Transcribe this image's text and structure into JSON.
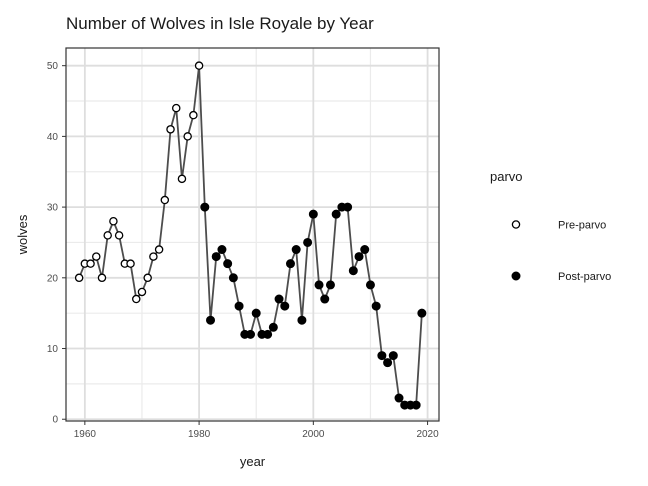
{
  "chart_data": {
    "type": "line",
    "title": "Number of Wolves in Isle Royale by Year",
    "xlabel": "year",
    "ylabel": "wolves",
    "xlim": [
      1956.7,
      2022.0
    ],
    "ylim": [
      -0.25,
      52.5
    ],
    "x_ticks": [
      1960,
      1980,
      2000,
      2020
    ],
    "y_ticks": [
      0,
      10,
      20,
      30,
      40,
      50
    ],
    "grid": true,
    "legend_title": "parvo",
    "legend_position": "right",
    "line_color": "#4d4d4d",
    "point_color": "#000000",
    "groups": [
      {
        "name": "Pre-parvo",
        "marker": "open-circle"
      },
      {
        "name": "Post-parvo",
        "marker": "filled-circle"
      }
    ],
    "points": [
      {
        "x": 1959,
        "y": 20,
        "group": "Pre-parvo"
      },
      {
        "x": 1960,
        "y": 22,
        "group": "Pre-parvo"
      },
      {
        "x": 1961,
        "y": 22,
        "group": "Pre-parvo"
      },
      {
        "x": 1962,
        "y": 23,
        "group": "Pre-parvo"
      },
      {
        "x": 1963,
        "y": 20,
        "group": "Pre-parvo"
      },
      {
        "x": 1964,
        "y": 26,
        "group": "Pre-parvo"
      },
      {
        "x": 1965,
        "y": 28,
        "group": "Pre-parvo"
      },
      {
        "x": 1966,
        "y": 26,
        "group": "Pre-parvo"
      },
      {
        "x": 1967,
        "y": 22,
        "group": "Pre-parvo"
      },
      {
        "x": 1968,
        "y": 22,
        "group": "Pre-parvo"
      },
      {
        "x": 1969,
        "y": 17,
        "group": "Pre-parvo"
      },
      {
        "x": 1970,
        "y": 18,
        "group": "Pre-parvo"
      },
      {
        "x": 1971,
        "y": 20,
        "group": "Pre-parvo"
      },
      {
        "x": 1972,
        "y": 23,
        "group": "Pre-parvo"
      },
      {
        "x": 1973,
        "y": 24,
        "group": "Pre-parvo"
      },
      {
        "x": 1974,
        "y": 31,
        "group": "Pre-parvo"
      },
      {
        "x": 1975,
        "y": 41,
        "group": "Pre-parvo"
      },
      {
        "x": 1976,
        "y": 44,
        "group": "Pre-parvo"
      },
      {
        "x": 1977,
        "y": 34,
        "group": "Pre-parvo"
      },
      {
        "x": 1978,
        "y": 40,
        "group": "Pre-parvo"
      },
      {
        "x": 1979,
        "y": 43,
        "group": "Pre-parvo"
      },
      {
        "x": 1980,
        "y": 50,
        "group": "Pre-parvo"
      },
      {
        "x": 1981,
        "y": 30,
        "group": "Post-parvo"
      },
      {
        "x": 1982,
        "y": 14,
        "group": "Post-parvo"
      },
      {
        "x": 1983,
        "y": 23,
        "group": "Post-parvo"
      },
      {
        "x": 1984,
        "y": 24,
        "group": "Post-parvo"
      },
      {
        "x": 1985,
        "y": 22,
        "group": "Post-parvo"
      },
      {
        "x": 1986,
        "y": 20,
        "group": "Post-parvo"
      },
      {
        "x": 1987,
        "y": 16,
        "group": "Post-parvo"
      },
      {
        "x": 1988,
        "y": 12,
        "group": "Post-parvo"
      },
      {
        "x": 1989,
        "y": 12,
        "group": "Post-parvo"
      },
      {
        "x": 1990,
        "y": 15,
        "group": "Post-parvo"
      },
      {
        "x": 1991,
        "y": 12,
        "group": "Post-parvo"
      },
      {
        "x": 1992,
        "y": 12,
        "group": "Post-parvo"
      },
      {
        "x": 1993,
        "y": 13,
        "group": "Post-parvo"
      },
      {
        "x": 1994,
        "y": 17,
        "group": "Post-parvo"
      },
      {
        "x": 1995,
        "y": 16,
        "group": "Post-parvo"
      },
      {
        "x": 1996,
        "y": 22,
        "group": "Post-parvo"
      },
      {
        "x": 1997,
        "y": 24,
        "group": "Post-parvo"
      },
      {
        "x": 1998,
        "y": 14,
        "group": "Post-parvo"
      },
      {
        "x": 1999,
        "y": 25,
        "group": "Post-parvo"
      },
      {
        "x": 2000,
        "y": 29,
        "group": "Post-parvo"
      },
      {
        "x": 2001,
        "y": 19,
        "group": "Post-parvo"
      },
      {
        "x": 2002,
        "y": 17,
        "group": "Post-parvo"
      },
      {
        "x": 2003,
        "y": 19,
        "group": "Post-parvo"
      },
      {
        "x": 2004,
        "y": 29,
        "group": "Post-parvo"
      },
      {
        "x": 2005,
        "y": 30,
        "group": "Post-parvo"
      },
      {
        "x": 2006,
        "y": 30,
        "group": "Post-parvo"
      },
      {
        "x": 2007,
        "y": 21,
        "group": "Post-parvo"
      },
      {
        "x": 2008,
        "y": 23,
        "group": "Post-parvo"
      },
      {
        "x": 2009,
        "y": 24,
        "group": "Post-parvo"
      },
      {
        "x": 2010,
        "y": 19,
        "group": "Post-parvo"
      },
      {
        "x": 2011,
        "y": 16,
        "group": "Post-parvo"
      },
      {
        "x": 2012,
        "y": 9,
        "group": "Post-parvo"
      },
      {
        "x": 2013,
        "y": 8,
        "group": "Post-parvo"
      },
      {
        "x": 2014,
        "y": 9,
        "group": "Post-parvo"
      },
      {
        "x": 2015,
        "y": 3,
        "group": "Post-parvo"
      },
      {
        "x": 2016,
        "y": 2,
        "group": "Post-parvo"
      },
      {
        "x": 2017,
        "y": 2,
        "group": "Post-parvo"
      },
      {
        "x": 2018,
        "y": 2,
        "group": "Post-parvo"
      },
      {
        "x": 2019,
        "y": 15,
        "group": "Post-parvo"
      }
    ]
  }
}
